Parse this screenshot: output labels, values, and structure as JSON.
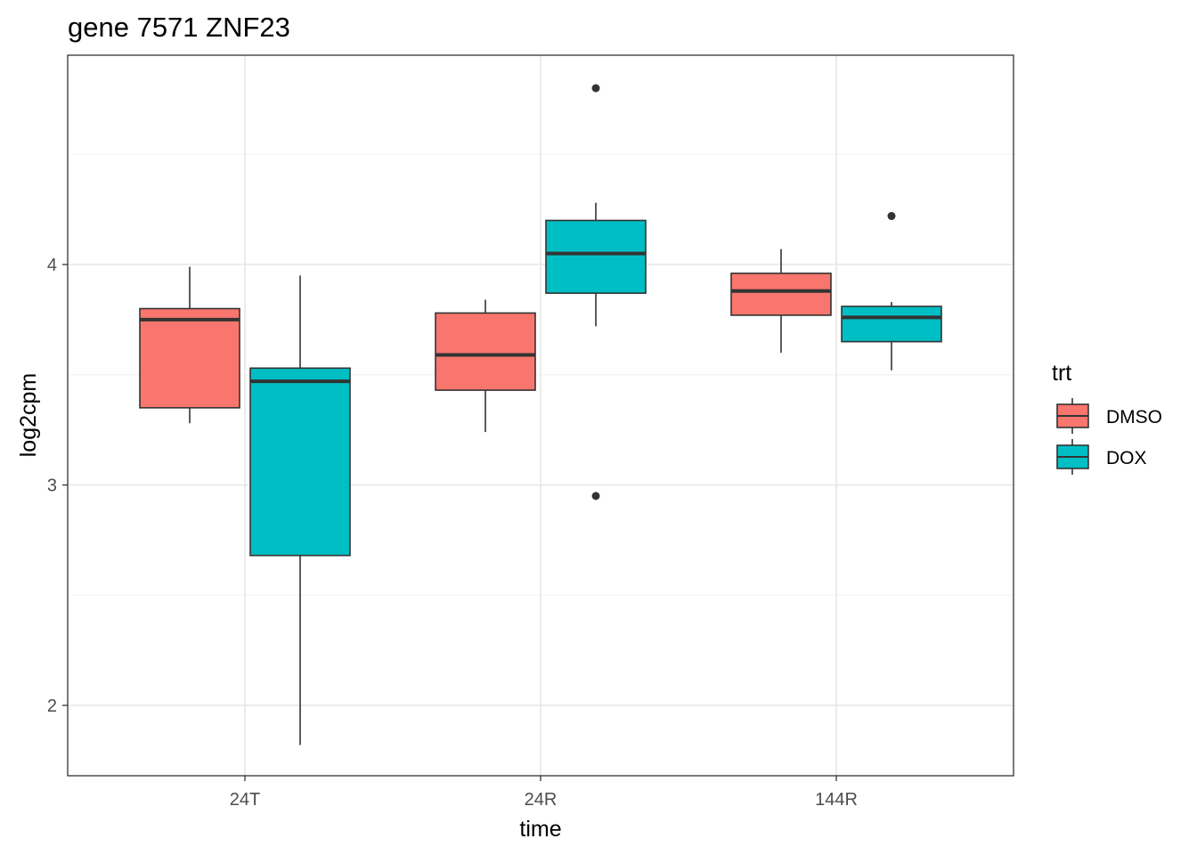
{
  "chart_data": {
    "type": "boxplot",
    "title": "gene 7571 ZNF23",
    "xlabel": "time",
    "ylabel": "log2cpm",
    "categories": [
      "24T",
      "24R",
      "144R"
    ],
    "yticks": [
      2,
      3,
      4
    ],
    "ylim": [
      1.68,
      4.95
    ],
    "grid": true,
    "legend": {
      "title": "trt",
      "placement": "right",
      "entries": [
        {
          "name": "DMSO",
          "color": "#F8766D"
        },
        {
          "name": "DOX",
          "color": "#00BFC4"
        }
      ]
    },
    "series": [
      {
        "name": "DMSO",
        "color": "#F8766D",
        "boxes": [
          {
            "category": "24T",
            "whisker_low": 3.28,
            "q1": 3.35,
            "median": 3.75,
            "q3": 3.8,
            "whisker_high": 3.99,
            "outliers": []
          },
          {
            "category": "24R",
            "whisker_low": 3.24,
            "q1": 3.43,
            "median": 3.59,
            "q3": 3.78,
            "whisker_high": 3.84,
            "outliers": []
          },
          {
            "category": "144R",
            "whisker_low": 3.6,
            "q1": 3.77,
            "median": 3.88,
            "q3": 3.96,
            "whisker_high": 4.07,
            "outliers": []
          }
        ]
      },
      {
        "name": "DOX",
        "color": "#00BFC4",
        "boxes": [
          {
            "category": "24T",
            "whisker_low": 1.82,
            "q1": 2.68,
            "median": 3.47,
            "q3": 3.53,
            "whisker_high": 3.95,
            "outliers": []
          },
          {
            "category": "24R",
            "whisker_low": 3.72,
            "q1": 3.87,
            "median": 4.05,
            "q3": 4.2,
            "whisker_high": 4.28,
            "outliers": [
              4.8,
              2.95
            ]
          },
          {
            "category": "144R",
            "whisker_low": 3.52,
            "q1": 3.65,
            "median": 3.76,
            "q3": 3.81,
            "whisker_high": 3.83,
            "outliers": [
              4.22
            ]
          }
        ]
      }
    ]
  }
}
